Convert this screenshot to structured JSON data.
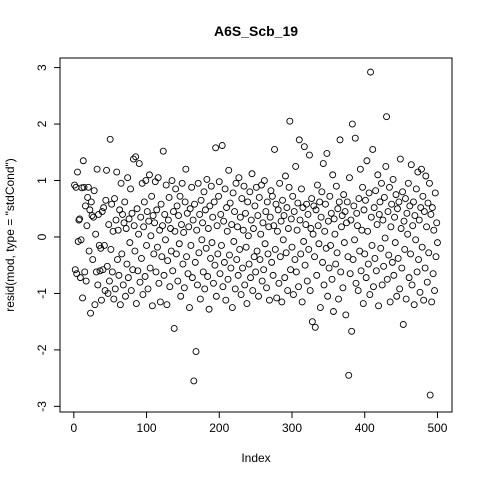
{
  "chart_data": {
    "type": "scatter",
    "title": "A6S_Scb_19",
    "x_label": "Index",
    "y_label": "resid(mod, type = \"stdCond\")",
    "xlim": [
      -19,
      520
    ],
    "ylim": [
      -3.1,
      3.17
    ],
    "xticks": [
      0,
      100,
      200,
      300,
      400,
      500
    ],
    "yticks": [
      -3,
      -2,
      -1,
      0,
      1,
      2,
      3
    ],
    "color": "#000000",
    "x": [
      1,
      2,
      3,
      4,
      5,
      6,
      7,
      8,
      9,
      10,
      11,
      12,
      13,
      14,
      15,
      16,
      17,
      18,
      19,
      20,
      21,
      22,
      23,
      24,
      25,
      26,
      27,
      28,
      29,
      30,
      31,
      32,
      33,
      34,
      35,
      36,
      37,
      38,
      39,
      40,
      41,
      42,
      43,
      44,
      45,
      46,
      47,
      48,
      49,
      50,
      51,
      52,
      53,
      54,
      55,
      56,
      57,
      58,
      59,
      60,
      61,
      62,
      63,
      64,
      65,
      66,
      67,
      68,
      69,
      70,
      71,
      72,
      73,
      74,
      75,
      76,
      77,
      78,
      79,
      80,
      81,
      82,
      83,
      84,
      85,
      86,
      87,
      88,
      89,
      90,
      91,
      92,
      93,
      94,
      95,
      96,
      97,
      98,
      99,
      100,
      101,
      102,
      103,
      104,
      105,
      106,
      107,
      108,
      109,
      110,
      111,
      112,
      113,
      114,
      115,
      116,
      117,
      118,
      119,
      120,
      121,
      122,
      123,
      124,
      125,
      126,
      127,
      128,
      129,
      130,
      131,
      132,
      133,
      134,
      135,
      136,
      137,
      138,
      139,
      140,
      141,
      142,
      143,
      144,
      145,
      146,
      147,
      148,
      149,
      150,
      151,
      152,
      153,
      154,
      155,
      156,
      157,
      158,
      159,
      160,
      161,
      162,
      163,
      164,
      165,
      166,
      167,
      168,
      169,
      170,
      171,
      172,
      173,
      174,
      175,
      176,
      177,
      178,
      179,
      180,
      181,
      182,
      183,
      184,
      185,
      186,
      187,
      188,
      189,
      190,
      191,
      192,
      193,
      194,
      195,
      196,
      197,
      198,
      199,
      200,
      201,
      202,
      203,
      204,
      205,
      206,
      207,
      208,
      209,
      210,
      211,
      212,
      213,
      214,
      215,
      216,
      217,
      218,
      219,
      220,
      221,
      222,
      223,
      224,
      225,
      226,
      227,
      228,
      229,
      230,
      231,
      232,
      233,
      234,
      235,
      236,
      237,
      238,
      239,
      240,
      241,
      242,
      243,
      244,
      245,
      246,
      247,
      248,
      249,
      250,
      251,
      252,
      253,
      254,
      255,
      256,
      257,
      258,
      259,
      260,
      261,
      262,
      263,
      264,
      265,
      266,
      267,
      268,
      269,
      270,
      271,
      272,
      273,
      274,
      275,
      276,
      277,
      278,
      279,
      280,
      281,
      282,
      283,
      284,
      285,
      286,
      287,
      288,
      289,
      290,
      291,
      292,
      293,
      294,
      295,
      296,
      297,
      298,
      299,
      300,
      301,
      302,
      303,
      304,
      305,
      306,
      307,
      308,
      309,
      310,
      311,
      312,
      313,
      314,
      315,
      316,
      317,
      318,
      319,
      320,
      321,
      322,
      323,
      324,
      325,
      326,
      327,
      328,
      329,
      330,
      331,
      332,
      333,
      334,
      335,
      336,
      337,
      338,
      339,
      340,
      341,
      342,
      343,
      344,
      345,
      346,
      347,
      348,
      349,
      350,
      351,
      352,
      353,
      354,
      355,
      356,
      357,
      358,
      359,
      360,
      361,
      362,
      363,
      364,
      365,
      366,
      367,
      368,
      369,
      370,
      371,
      372,
      373,
      374,
      375,
      376,
      377,
      378,
      379,
      380,
      381,
      382,
      383,
      384,
      385,
      386,
      387,
      388,
      389,
      390,
      391,
      392,
      393,
      394,
      395,
      396,
      397,
      398,
      399,
      400,
      401,
      402,
      403,
      404,
      405,
      406,
      407,
      408,
      409,
      410,
      411,
      412,
      413,
      414,
      415,
      416,
      417,
      418,
      419,
      420,
      421,
      422,
      423,
      424,
      425,
      426,
      427,
      428,
      429,
      430,
      431,
      432,
      433,
      434,
      435,
      436,
      437,
      438,
      439,
      440,
      441,
      442,
      443,
      444,
      445,
      446,
      447,
      448,
      449,
      450,
      451,
      452,
      453,
      454,
      455,
      456,
      457,
      458,
      459,
      460,
      461,
      462,
      463,
      464,
      465,
      466,
      467,
      468,
      469,
      470,
      471,
      472,
      473,
      474,
      475,
      476,
      477,
      478,
      479,
      480,
      481,
      482,
      483,
      484,
      485,
      486,
      487,
      488,
      489,
      490,
      491,
      492,
      493,
      494,
      495,
      496,
      497,
      498,
      499,
      500
    ],
    "values": [
      0.92,
      -0.58,
      0.88,
      -0.65,
      1.15,
      -0.08,
      0.3,
      0.32,
      -0.72,
      -0.05,
      0.87,
      -1.08,
      1.35,
      0.88,
      -0.62,
      0.55,
      -0.78,
      0.2,
      0.7,
      0.88,
      -0.25,
      0.48,
      -1.35,
      0.62,
      0.38,
      -0.4,
      0.35,
      0.82,
      -1.2,
      0.05,
      -0.62,
      1.2,
      -0.85,
      0.4,
      -0.15,
      -0.6,
      -0.2,
      -1.12,
      0.45,
      -0.58,
      0.52,
      -0.15,
      -0.95,
      0.65,
      1.18,
      -0.52,
      -1.0,
      0.22,
      -0.78,
      1.73,
      -0.22,
      0.58,
      -0.62,
      0.1,
      -1.1,
      0.68,
      -0.92,
      0.3,
      1.15,
      -0.4,
      0.12,
      -0.68,
      0.48,
      -1.2,
      0.95,
      -0.3,
      0.4,
      -0.85,
      0.25,
      0.62,
      -1.05,
      0.15,
      -0.48,
      1.05,
      -0.72,
      0.32,
      -0.1,
      0.85,
      -0.95,
      0.42,
      -0.58,
      1.38,
      0.2,
      -0.25,
      1.42,
      -1.18,
      0.5,
      -0.6,
      0.05,
      1.3,
      -0.8,
      0.35,
      -0.38,
      0.95,
      -1.02,
      0.18,
      0.62,
      -0.7,
      1.0,
      -0.15,
      0.45,
      -0.92,
      0.28,
      1.1,
      -0.55,
      0.02,
      0.72,
      -1.22,
      0.38,
      -0.3,
      0.25,
      0.98,
      -0.62,
      0.48,
      -0.18,
      1.05,
      -0.82,
      0.12,
      -1.15,
      0.58,
      -0.35,
      0.2,
      1.52,
      -0.68,
      0.4,
      -0.05,
      0.92,
      -1.2,
      -0.42,
      0.3,
      0.7,
      -0.88,
      0.15,
      -0.25,
      1.0,
      -0.6,
      0.45,
      -1.62,
      0.1,
      0.85,
      -0.3,
      0.55,
      -0.78,
      0.38,
      -0.12,
      0.72,
      -1.05,
      0.22,
      0.95,
      -0.48,
      0.08,
      -0.9,
      0.62,
      1.2,
      -0.35,
      0.42,
      -0.65,
      0.18,
      -1.25,
      0.5,
      -0.15,
      0.88,
      -0.72,
      0.3,
      -2.55,
      0.58,
      -0.45,
      -2.03,
      0.12,
      -0.85,
      0.95,
      -0.28,
      0.4,
      -1.1,
      0.65,
      -0.05,
      0.25,
      -0.62,
      0.8,
      -0.92,
      0.48,
      -0.2,
      1.02,
      -0.7,
      0.15,
      -1.28,
      0.55,
      -0.38,
      0.9,
      -0.1,
      0.35,
      -0.82,
      0.62,
      -0.5,
      1.58,
      -1.05,
      0.2,
      -0.3,
      0.72,
      0.98,
      -0.65,
      0.4,
      -0.15,
      1.62,
      -0.88,
      0.28,
      -0.45,
      0.85,
      -1.12,
      0.52,
      0.1,
      -0.75,
      1.18,
      -0.32,
      0.6,
      -0.55,
      0.22,
      -1.25,
      0.78,
      -0.08,
      0.45,
      -0.92,
      0.95,
      -0.4,
      0.18,
      -0.68,
      1.05,
      -0.22,
      0.35,
      -1.02,
      0.68,
      -0.55,
      0.12,
      0.9,
      -0.85,
      0.42,
      -0.18,
      -1.18,
      0.62,
      0.02,
      -0.48,
      0.8,
      -0.72,
      0.3,
      1.12,
      -0.95,
      0.15,
      -0.35,
      0.55,
      -0.62,
      0.88,
      -0.25,
      0.38,
      -1.05,
      0.7,
      -0.4,
      0.05,
      0.92,
      -0.78,
      0.25,
      -0.58,
      1.0,
      -0.12,
      0.45,
      -0.9,
      0.62,
      -0.3,
      0.18,
      -1.12,
      0.35,
      0.82,
      -0.45,
      0.72,
      -0.68,
      0.2,
      1.55,
      -0.22,
      0.58,
      -1.08,
      0.1,
      0.48,
      -0.82,
      0.95,
      -0.35,
      0.28,
      -1.15,
      0.65,
      -0.05,
      0.38,
      -0.72,
      1.08,
      -0.28,
      0.52,
      -0.95,
      0.15,
      0.88,
      2.05,
      -0.58,
      0.32,
      -0.18,
      0.72,
      -1.02,
      0.45,
      -0.4,
      1.25,
      -0.62,
      0.12,
      0.6,
      -0.88,
      1.72,
      0.3,
      -0.3,
      0.85,
      -1.15,
      0.52,
      -0.08,
      1.6,
      -0.5,
      0.22,
      0.58,
      -0.78,
      0.4,
      -0.22,
      1.45,
      -0.95,
      0.15,
      0.68,
      -1.5,
      0.05,
      0.55,
      -0.35,
      -1.6,
      0.48,
      -0.68,
      0.92,
      0.2,
      -0.12,
      0.62,
      -1.25,
      0.35,
      0.8,
      -0.45,
      1.3,
      -0.85,
      0.1,
      0.58,
      -0.2,
      1.48,
      -1.05,
      0.28,
      -0.55,
      0.72,
      -0.15,
      0.42,
      -0.75,
      1.1,
      -1.32,
      0.32,
      0.05,
      -0.48,
      0.9,
      -0.28,
      0.5,
      -1.1,
      0.62,
      1.72,
      -0.62,
      0.18,
      0.38,
      -0.9,
      0.75,
      -0.1,
      0.45,
      -1.38,
      0.25,
      0.62,
      -0.35,
      -2.45,
      1.05,
      -0.65,
      0.3,
      -1.67,
      2.0,
      -0.4,
      0.55,
      -0.05,
      1.75,
      -0.82,
      0.42,
      0.2,
      -0.95,
      0.68,
      -0.25,
      1.2,
      -0.6,
      0.12,
      0.88,
      -1.18,
      0.48,
      -0.3,
      0.65,
      -0.72,
      1.35,
      0.1,
      -0.48,
      0.78,
      -1.02,
      2.92,
      0.35,
      -0.15,
      1.55,
      -0.88,
      0.52,
      -0.38,
      0.82,
      -0.6,
      0.22,
      1.1,
      -1.22,
      0.4,
      0.62,
      -0.2,
      0.95,
      -0.85,
      0.3,
      -0.52,
      0.7,
      -0.02,
      1.25,
      2.13,
      -0.75,
      0.45,
      -0.32,
      0.88,
      -1.15,
      0.18,
      0.58,
      -0.45,
      1.02,
      -0.68,
      0.35,
      -0.1,
      0.75,
      -1.05,
      0.5,
      -0.38,
      0.62,
      -0.92,
      1.38,
      0.15,
      -0.55,
      0.8,
      -1.55,
      0.28,
      -0.22,
      0.68,
      -1.1,
      0.42,
      0.05,
      0.95,
      -0.72,
      0.55,
      -0.3,
      1.28,
      -0.85,
      0.2,
      0.62,
      -1.2,
      0.38,
      -0.05,
      0.85,
      -0.62,
      1.15,
      -0.4,
      0.3,
      -0.98,
      0.52,
      1.2,
      -0.18,
      0.72,
      -1.12,
      0.45,
      -0.55,
      1.08,
      0.18,
      -0.8,
      0.6,
      -0.28,
      0.95,
      -2.8,
      0.4,
      -1.15,
      0.52,
      -0.65,
      0.12,
      -0.95,
      0.78,
      -0.35,
      0.25,
      -0.1
    ]
  }
}
